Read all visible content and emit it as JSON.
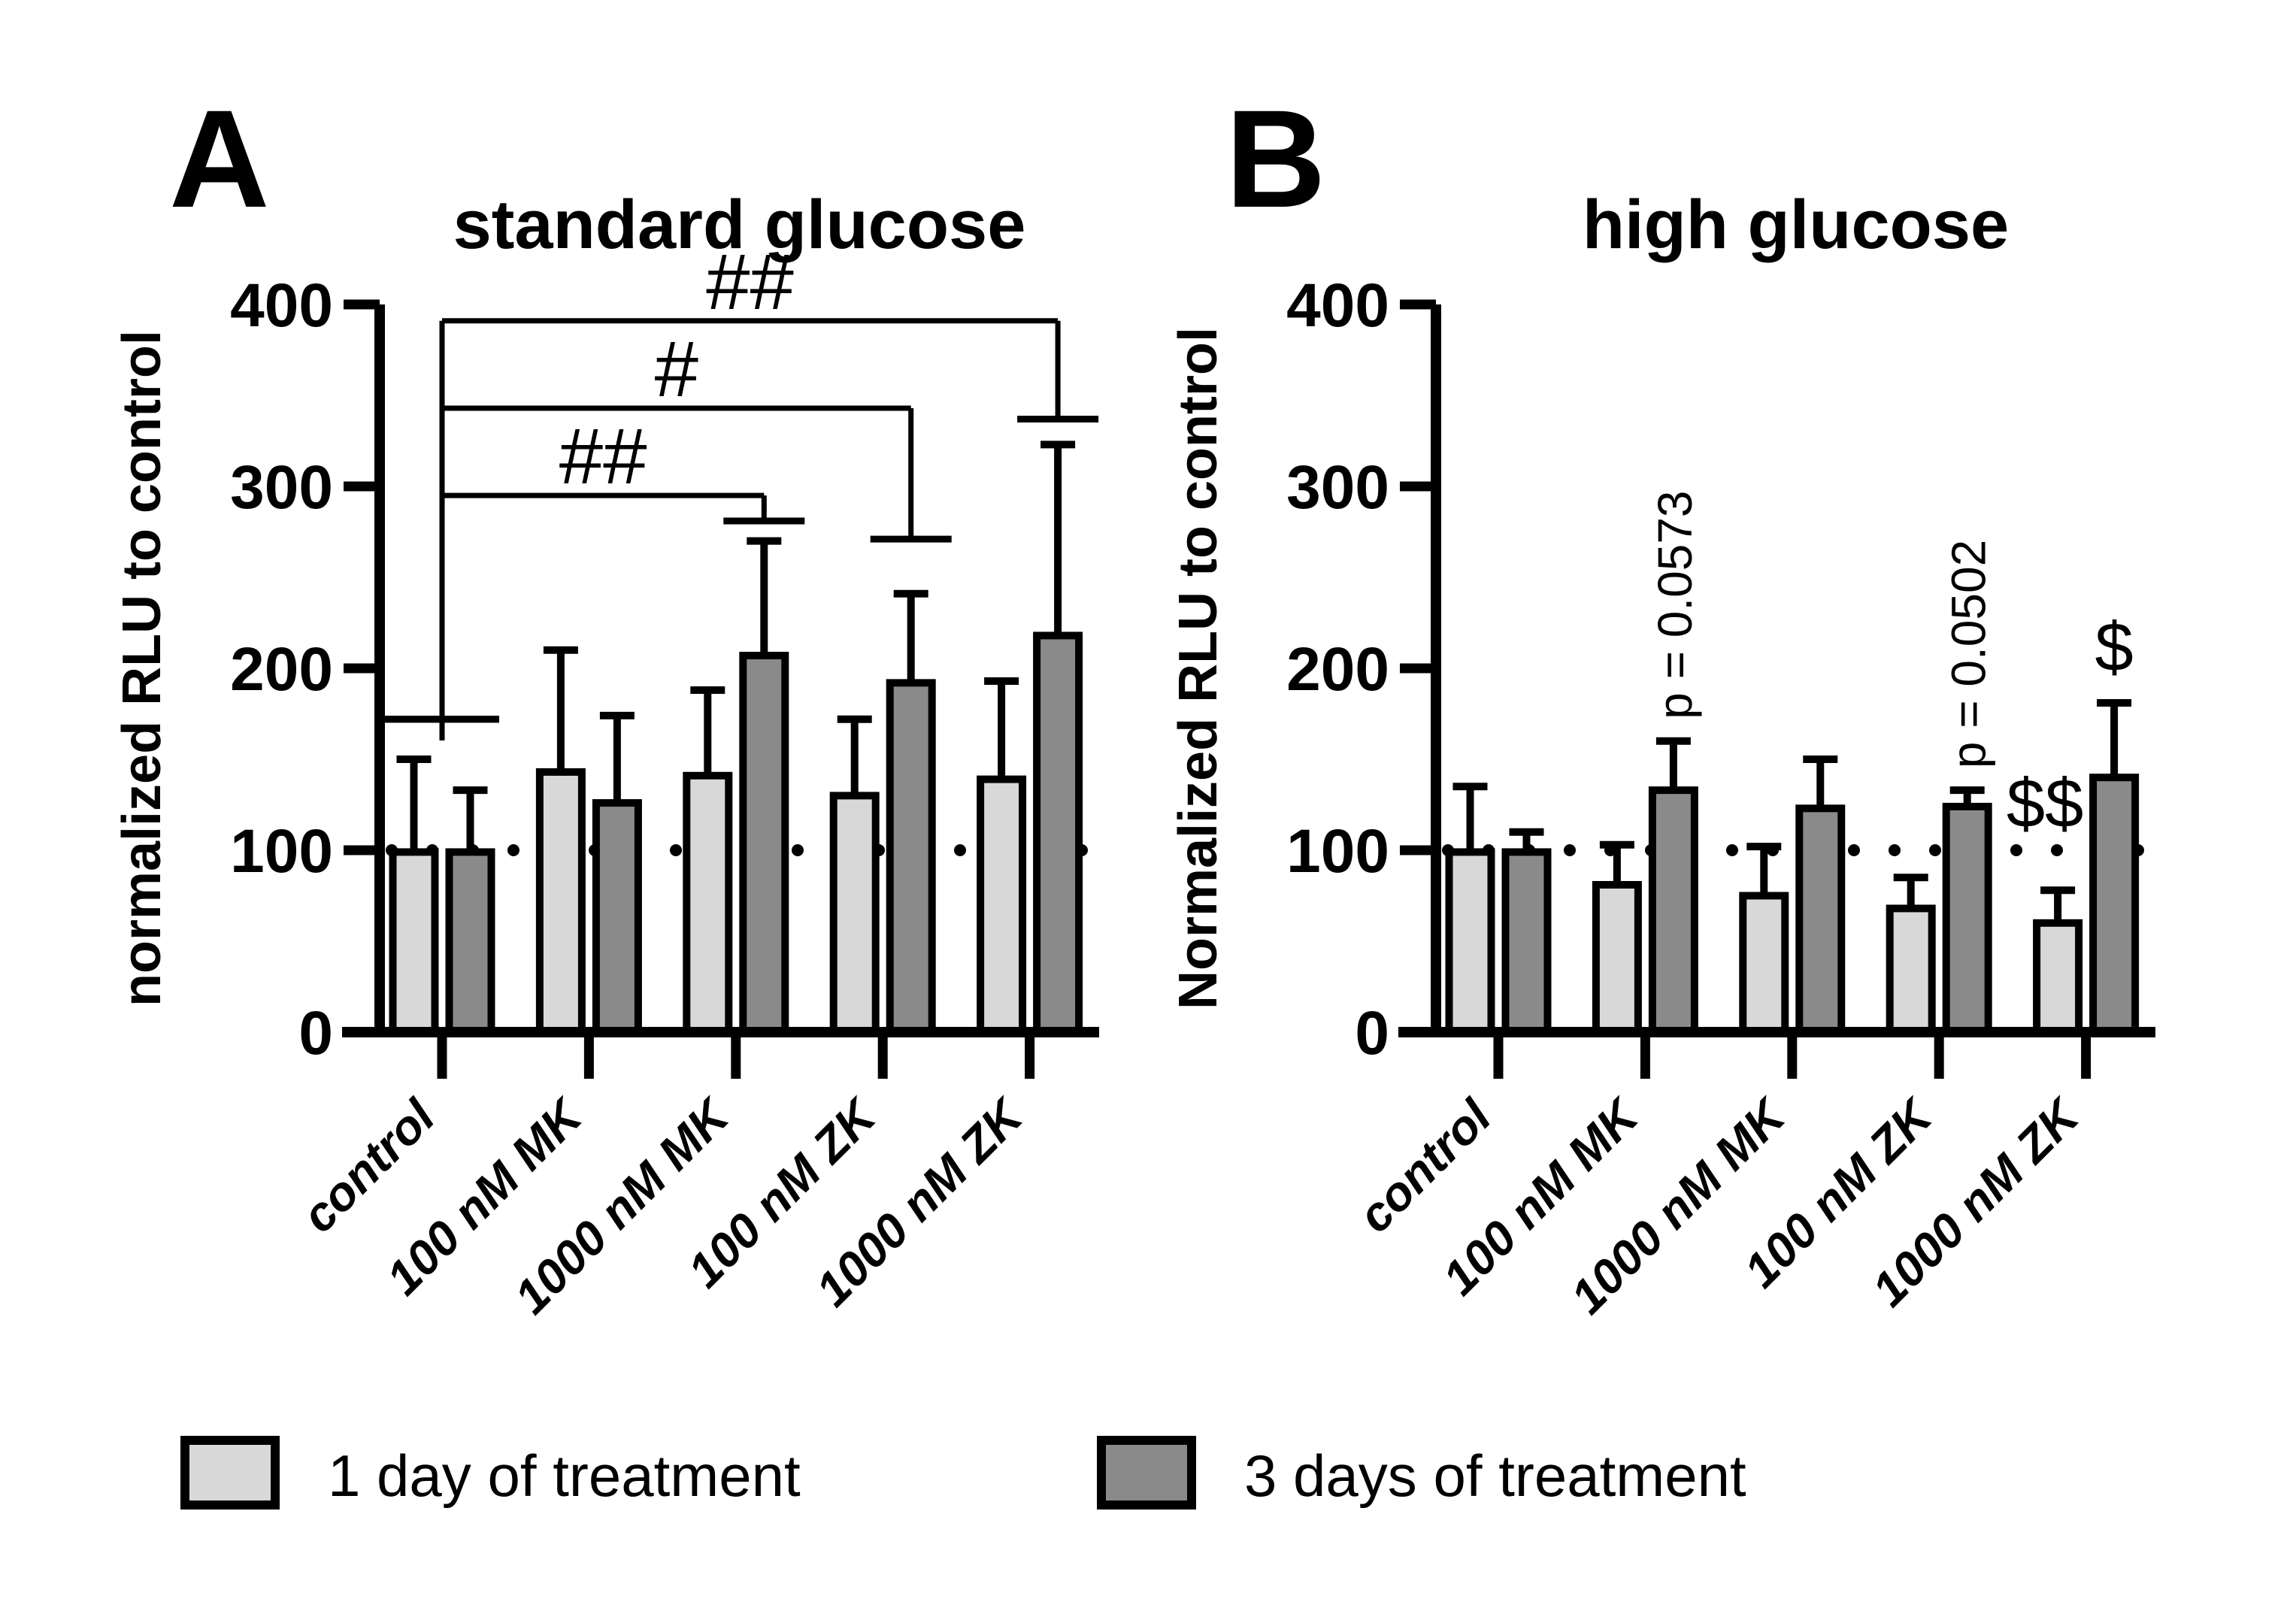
{
  "figure_background": "#ffffff",
  "series_colors": {
    "day1": "#d8d8d8",
    "day3": "#8a8a8a",
    "outline": "#000000"
  },
  "legend": {
    "items": [
      {
        "label": "1 day of treatment",
        "color": "#d8d8d8"
      },
      {
        "label": "3 days of treatment",
        "color": "#8a8a8a"
      }
    ]
  },
  "chart_data": [
    {
      "type": "bar",
      "panel_letter": "A",
      "title": "standard glucose",
      "ylabel": "normalized RLU to control",
      "xlabel": "",
      "ylim": [
        0,
        400
      ],
      "yticks": [
        0,
        100,
        200,
        300,
        400
      ],
      "ytick_labels": [
        "0",
        "100",
        "200",
        "300",
        "400"
      ],
      "grid": false,
      "reference_line_value": 100,
      "categories": [
        "control",
        "100 nM MK",
        "1000 nM MK",
        "100 nM ZK",
        "1000 nM ZK"
      ],
      "series": [
        {
          "name": "1 day of treatment",
          "values": [
            99,
            143,
            141,
            130,
            139
          ],
          "err_top": [
            150,
            210,
            188,
            172,
            193
          ]
        },
        {
          "name": "3 days of treatment",
          "values": [
            99,
            126,
            207,
            192,
            218
          ],
          "err_top": [
            133,
            174,
            270,
            241,
            323
          ]
        }
      ],
      "significance_brackets": [
        {
          "label": "##",
          "from_category": 0,
          "to_category": 2,
          "to_series": 1,
          "line_value": 295,
          "left_cap_value": 172,
          "right_cap_value": 281
        },
        {
          "label": "#",
          "from_category": 0,
          "to_category": 3,
          "to_series": 1,
          "line_value": 343,
          "left_cap_value": 172,
          "right_cap_value": 271
        },
        {
          "label": "##",
          "from_category": 0,
          "to_category": 4,
          "to_series": 1,
          "line_value": 391,
          "left_cap_value": 172,
          "right_cap_value": 337
        }
      ],
      "annotations": []
    },
    {
      "type": "bar",
      "panel_letter": "B",
      "title": "high glucose",
      "ylabel": "Normalized RLU to control",
      "xlabel": "",
      "ylim": [
        0,
        400
      ],
      "yticks": [
        0,
        100,
        200,
        300,
        400
      ],
      "ytick_labels": [
        "0",
        "100",
        "200",
        "300",
        "400"
      ],
      "grid": false,
      "reference_line_value": 100,
      "categories": [
        "control",
        "100 nM MK",
        "1000 nM MK",
        "100 nM ZK",
        "1000 nM ZK"
      ],
      "series": [
        {
          "name": "1 day of treatment",
          "values": [
            99,
            81,
            75,
            68,
            60
          ],
          "err_top": [
            135,
            103,
            102,
            85,
            78
          ]
        },
        {
          "name": "3 days of treatment",
          "values": [
            99,
            133,
            123,
            124,
            140
          ],
          "err_top": [
            110,
            160,
            150,
            133,
            181
          ]
        }
      ],
      "significance_brackets": [],
      "annotations": [
        {
          "text": "p = 0.0573",
          "orientation": "vertical",
          "category": 1,
          "series": 1,
          "value": 172,
          "dx": 0
        },
        {
          "text": "p = 0.0502",
          "orientation": "vertical",
          "category": 3,
          "series": 1,
          "value": 145,
          "dx": 0
        },
        {
          "text": "$$",
          "orientation": "horizontal",
          "category": 4,
          "series": 1,
          "value": 126,
          "dx": -92
        },
        {
          "text": "$",
          "orientation": "horizontal",
          "category": 4,
          "series": 1,
          "value": 212,
          "dx": 0
        }
      ]
    }
  ]
}
